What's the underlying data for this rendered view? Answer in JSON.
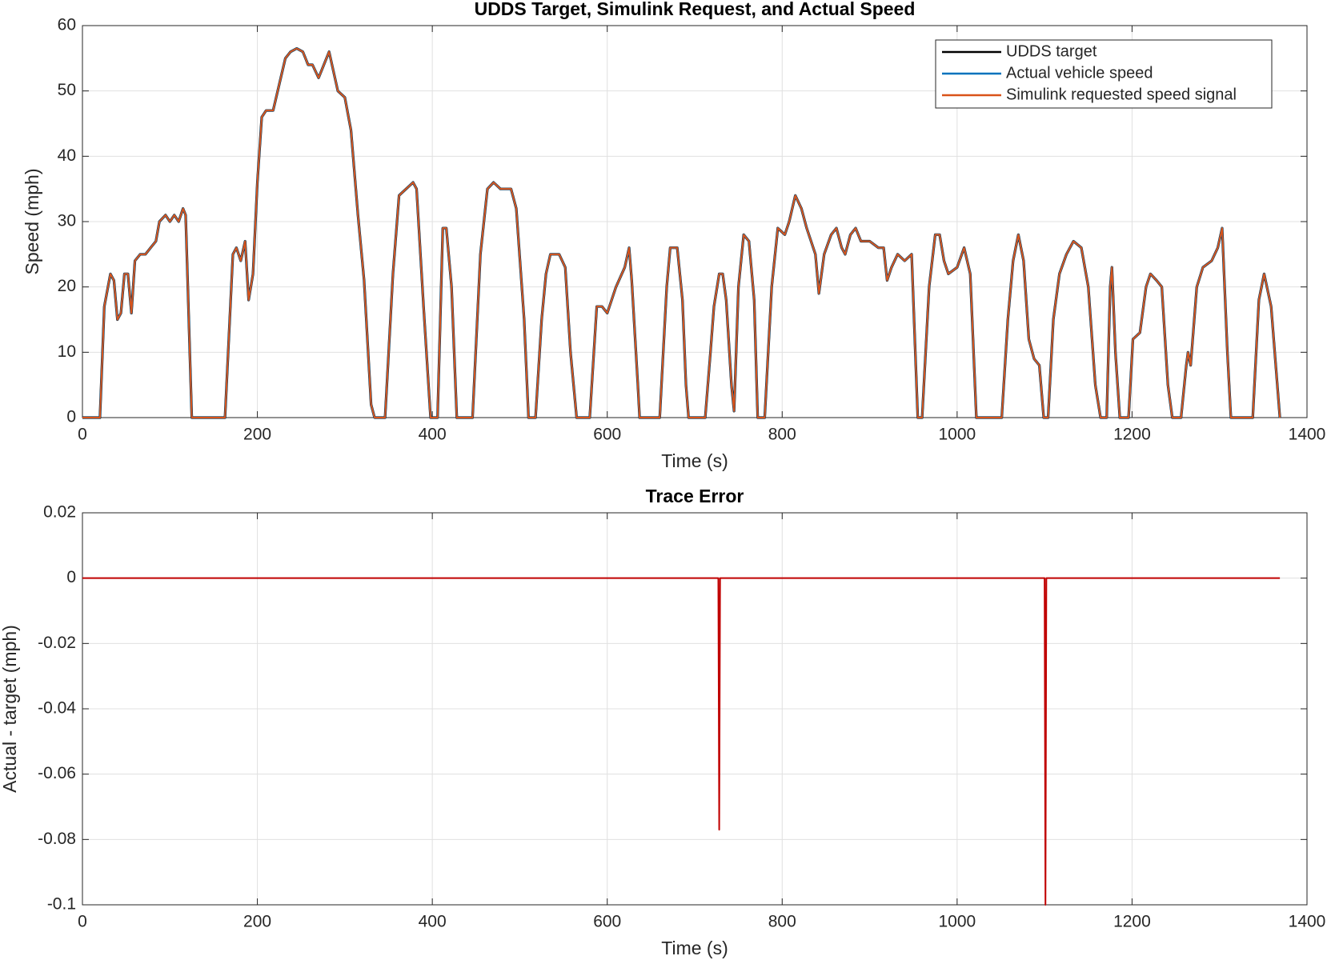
{
  "chart_data": [
    {
      "type": "line",
      "title": "UDDS Target, Simulink Request, and Actual Speed",
      "xlabel": "Time (s)",
      "ylabel": "Speed (mph)",
      "xlim": [
        0,
        1400
      ],
      "xticks": [
        0,
        200,
        400,
        600,
        800,
        1000,
        1200,
        1400
      ],
      "ylim": [
        0,
        60
      ],
      "yticks": [
        0,
        10,
        20,
        30,
        40,
        50,
        60
      ],
      "grid": true,
      "legend": "northeast",
      "x": [
        0,
        20,
        25,
        32,
        36,
        40,
        44,
        48,
        52,
        56,
        60,
        66,
        72,
        78,
        84,
        88,
        95,
        100,
        105,
        110,
        115,
        118,
        125,
        163,
        172,
        176,
        181,
        186,
        190,
        195,
        200,
        205,
        210,
        218,
        225,
        232,
        238,
        245,
        252,
        258,
        263,
        270,
        276,
        282,
        287,
        292,
        300,
        307,
        315,
        322,
        330,
        334,
        346,
        355,
        362,
        370,
        378,
        382,
        390,
        398,
        406,
        412,
        416,
        422,
        428,
        446,
        455,
        463,
        470,
        478,
        490,
        496,
        505,
        510,
        518,
        525,
        530,
        535,
        545,
        552,
        558,
        565,
        580,
        588,
        594,
        600,
        610,
        620,
        625,
        628,
        635,
        637,
        660,
        668,
        672,
        680,
        686,
        690,
        693,
        712,
        718,
        722,
        728,
        732,
        736,
        742,
        745,
        750,
        756,
        762,
        768,
        772,
        780,
        788,
        795,
        803,
        808,
        815,
        822,
        828,
        838,
        842,
        848,
        856,
        862,
        868,
        872,
        878,
        884,
        890,
        900,
        910,
        916,
        920,
        925,
        932,
        940,
        948,
        955,
        960,
        968,
        975,
        980,
        985,
        990,
        1000,
        1008,
        1015,
        1022,
        1051,
        1058,
        1064,
        1070,
        1076,
        1082,
        1088,
        1094,
        1099,
        1104,
        1110,
        1117,
        1125,
        1133,
        1142,
        1150,
        1158,
        1164,
        1171,
        1175,
        1177,
        1181,
        1186,
        1196,
        1201,
        1209,
        1216,
        1221,
        1228,
        1234,
        1241,
        1246,
        1256,
        1262,
        1264,
        1267,
        1274,
        1281,
        1291,
        1298,
        1303,
        1309,
        1313,
        1338,
        1345,
        1351,
        1359,
        1369
      ],
      "series": [
        {
          "name": "UDDS target",
          "color": "#000000",
          "values": [
            0,
            0,
            17,
            22,
            21,
            15,
            16,
            22,
            22,
            16,
            24,
            25,
            25,
            26,
            27,
            30,
            31,
            30,
            31,
            30,
            32,
            31,
            0,
            0,
            25,
            26,
            24,
            27,
            18,
            22,
            36,
            46,
            47,
            47,
            51,
            55,
            56,
            56.5,
            56,
            54,
            54,
            52,
            54,
            56,
            53,
            50,
            49,
            44,
            31,
            21,
            2,
            0,
            0,
            22,
            34,
            35,
            36,
            35,
            17,
            0,
            0,
            29,
            29,
            20,
            0,
            0,
            25,
            35,
            36,
            35,
            35,
            32,
            15,
            0,
            0,
            15,
            22,
            25,
            25,
            23,
            10,
            0,
            0,
            17,
            17,
            16,
            20,
            23,
            26,
            21,
            5,
            0,
            0,
            20,
            26,
            26,
            18,
            5,
            0,
            0,
            10,
            17,
            22,
            22,
            18,
            5,
            1,
            20,
            28,
            27,
            18,
            0,
            0,
            20,
            29,
            28,
            30,
            34,
            32,
            29,
            25,
            19,
            25,
            28,
            29,
            26,
            25,
            28,
            29,
            27,
            27,
            26,
            26,
            21,
            23,
            25,
            24,
            25,
            0,
            0,
            20,
            28,
            28,
            24,
            22,
            23,
            26,
            22,
            0,
            0,
            15,
            24,
            28,
            24,
            12,
            9,
            8,
            0,
            0,
            15,
            22,
            25,
            27,
            26,
            20,
            5,
            0,
            0,
            20,
            23,
            10,
            0,
            0,
            12,
            13,
            20,
            22,
            21,
            20,
            5,
            0,
            0,
            8,
            10,
            8,
            20,
            23,
            24,
            26,
            29,
            10,
            0,
            0,
            18,
            22,
            17,
            0
          ]
        },
        {
          "name": "Actual vehicle speed",
          "color": "#0072bd",
          "values": [
            0,
            0,
            17,
            22,
            21,
            15,
            16,
            22,
            22,
            16,
            24,
            25,
            25,
            26,
            27,
            30,
            31,
            30,
            31,
            30,
            32,
            31,
            0,
            0,
            25,
            26,
            24,
            27,
            18,
            22,
            36,
            46,
            47,
            47,
            51,
            55,
            56,
            56.5,
            56,
            54,
            54,
            52,
            54,
            56,
            53,
            50,
            49,
            44,
            31,
            21,
            2,
            0,
            0,
            22,
            34,
            35,
            36,
            35,
            17,
            0,
            0,
            29,
            29,
            20,
            0,
            0,
            25,
            35,
            36,
            35,
            35,
            32,
            15,
            0,
            0,
            15,
            22,
            25,
            25,
            23,
            10,
            0,
            0,
            17,
            17,
            16,
            20,
            23,
            26,
            21,
            5,
            0,
            0,
            20,
            26,
            26,
            18,
            5,
            0,
            0,
            10,
            17,
            22,
            22,
            18,
            5,
            1,
            20,
            28,
            27,
            18,
            0,
            0,
            20,
            29,
            28,
            30,
            34,
            32,
            29,
            25,
            19,
            25,
            28,
            29,
            26,
            25,
            28,
            29,
            27,
            27,
            26,
            26,
            21,
            23,
            25,
            24,
            25,
            0,
            0,
            20,
            28,
            28,
            24,
            22,
            23,
            26,
            22,
            0,
            0,
            15,
            24,
            28,
            24,
            12,
            9,
            8,
            0,
            0,
            15,
            22,
            25,
            27,
            26,
            20,
            5,
            0,
            0,
            20,
            23,
            10,
            0,
            0,
            12,
            13,
            20,
            22,
            21,
            20,
            5,
            0,
            0,
            8,
            10,
            8,
            20,
            23,
            24,
            26,
            29,
            10,
            0,
            0,
            18,
            22,
            17,
            0
          ]
        },
        {
          "name": "Simulink requested speed signal",
          "color": "#d95319",
          "values": [
            0,
            0,
            17,
            22,
            21,
            15,
            16,
            22,
            22,
            16,
            24,
            25,
            25,
            26,
            27,
            30,
            31,
            30,
            31,
            30,
            32,
            31,
            0,
            0,
            25,
            26,
            24,
            27,
            18,
            22,
            36,
            46,
            47,
            47,
            51,
            55,
            56,
            56.5,
            56,
            54,
            54,
            52,
            54,
            56,
            53,
            50,
            49,
            44,
            31,
            21,
            2,
            0,
            0,
            22,
            34,
            35,
            36,
            35,
            17,
            0,
            0,
            29,
            29,
            20,
            0,
            0,
            25,
            35,
            36,
            35,
            35,
            32,
            15,
            0,
            0,
            15,
            22,
            25,
            25,
            23,
            10,
            0,
            0,
            17,
            17,
            16,
            20,
            23,
            26,
            21,
            5,
            0,
            0,
            20,
            26,
            26,
            18,
            5,
            0,
            0,
            10,
            17,
            22,
            22,
            18,
            5,
            1,
            20,
            28,
            27,
            18,
            0,
            0,
            20,
            29,
            28,
            30,
            34,
            32,
            29,
            25,
            19,
            25,
            28,
            29,
            26,
            25,
            28,
            29,
            27,
            27,
            26,
            26,
            21,
            23,
            25,
            24,
            25,
            0,
            0,
            20,
            28,
            28,
            24,
            22,
            23,
            26,
            22,
            0,
            0,
            15,
            24,
            28,
            24,
            12,
            9,
            8,
            0,
            0,
            15,
            22,
            25,
            27,
            26,
            20,
            5,
            0,
            0,
            20,
            23,
            10,
            0,
            0,
            12,
            13,
            20,
            22,
            21,
            20,
            5,
            0,
            0,
            8,
            10,
            8,
            20,
            23,
            24,
            26,
            29,
            10,
            0,
            0,
            18,
            22,
            17,
            0
          ]
        }
      ]
    },
    {
      "type": "line",
      "title": "Trace Error",
      "xlabel": "Time (s)",
      "ylabel": "Actual - target (mph)",
      "xlim": [
        0,
        1400
      ],
      "xticks": [
        0,
        200,
        400,
        600,
        800,
        1000,
        1200,
        1400
      ],
      "ylim": [
        -0.1,
        0.02
      ],
      "yticks": [
        -0.1,
        -0.08,
        -0.06,
        -0.04,
        -0.02,
        0,
        0.02
      ],
      "grid": true,
      "x": [
        0,
        727,
        728,
        729,
        1100,
        1101,
        1102,
        1369
      ],
      "series": [
        {
          "color": "#c00000",
          "values": [
            0,
            0,
            -0.077,
            0,
            0,
            -0.1,
            0,
            0
          ]
        }
      ]
    }
  ]
}
